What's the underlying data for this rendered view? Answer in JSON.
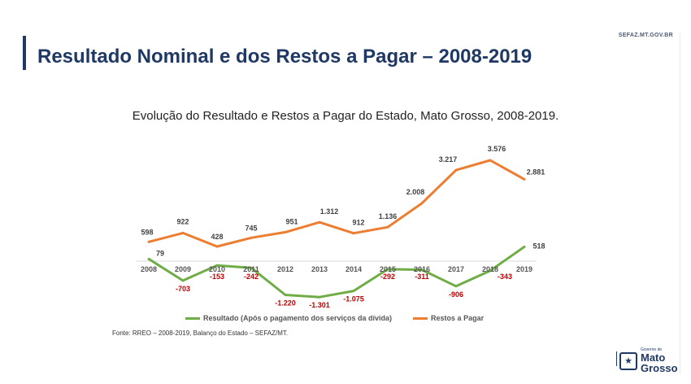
{
  "header": {
    "site_url": "SEFAZ.MT.GOV.BR",
    "title": "Resultado Nominal e dos Restos a Pagar – 2008-2019"
  },
  "chart_data": {
    "type": "line",
    "title": "Evolução do Resultado e Restos a Pagar do Estado, Mato Grosso, 2008-2019.",
    "categories": [
      "2008",
      "2009",
      "2010",
      "2011",
      "2012",
      "2013",
      "2014",
      "2015",
      "2016",
      "2017",
      "2018",
      "2019"
    ],
    "series": [
      {
        "name": "Resultado (Após o pagamento dos serviços da dívida)",
        "color": "#70ad47",
        "values": [
          79,
          -703,
          -153,
          -242,
          -1220,
          -1301,
          -1075,
          -292,
          -311,
          -906,
          -343,
          518
        ],
        "labels": [
          "79",
          "-703",
          "-153",
          "-242",
          "-1.220",
          "-1.301",
          "-1.075",
          "-292",
          "-311",
          "-906",
          "-343",
          "518"
        ]
      },
      {
        "name": "Restos a Pagar",
        "color": "#ed7d31",
        "values": [
          598,
          922,
          428,
          745,
          951,
          1312,
          912,
          1136,
          2008,
          3217,
          3576,
          2881
        ],
        "labels": [
          "598",
          "922",
          "428",
          "745",
          "951",
          "1.312",
          "912",
          "1.136",
          "2.008",
          "3.217",
          "3.576",
          "2.881"
        ]
      }
    ],
    "negative_label_color": "#c00000",
    "legend_position": "bottom",
    "grid": false
  },
  "source": "Fonte: RREO – 2008-2019, Balanço do Estado – SEFAZ/MT.",
  "logo": {
    "small_text": "Governo de",
    "big_text_1": "Mato",
    "big_text_2": "Grosso"
  }
}
